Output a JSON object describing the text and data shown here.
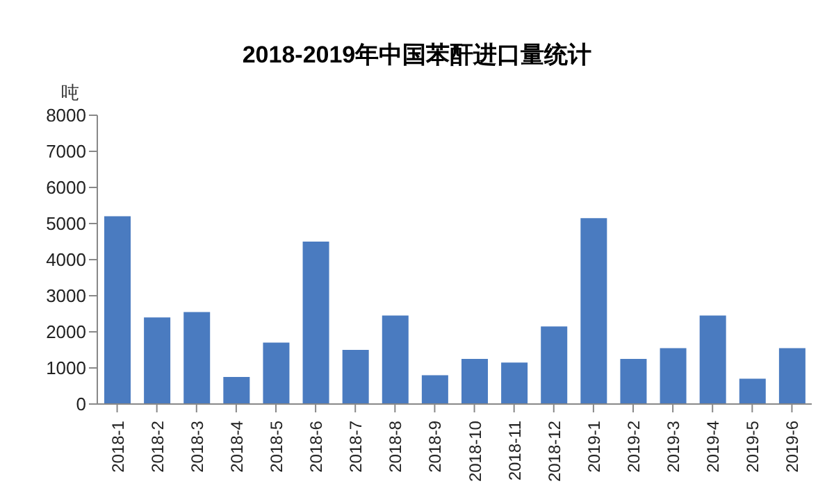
{
  "chart_data": {
    "type": "bar",
    "title": "2018-2019年中国苯酐进口量统计",
    "ylabel": "吨",
    "categories": [
      "2018-1",
      "2018-2",
      "2018-3",
      "2018-4",
      "2018-5",
      "2018-6",
      "2018-7",
      "2018-8",
      "2018-9",
      "2018-10",
      "2018-11",
      "2018-12",
      "2019-1",
      "2019-2",
      "2019-3",
      "2019-4",
      "2019-5",
      "2019-6"
    ],
    "values": [
      5200,
      2400,
      2550,
      750,
      1700,
      4500,
      1500,
      2450,
      800,
      1250,
      1150,
      2150,
      5150,
      1250,
      1550,
      2450,
      700,
      1550
    ],
    "color": "#4a7bc0",
    "ylim": [
      0,
      8000
    ],
    "yticks": [
      0,
      1000,
      2000,
      3000,
      4000,
      5000,
      6000,
      7000,
      8000
    ],
    "grid": false,
    "legend": false
  }
}
